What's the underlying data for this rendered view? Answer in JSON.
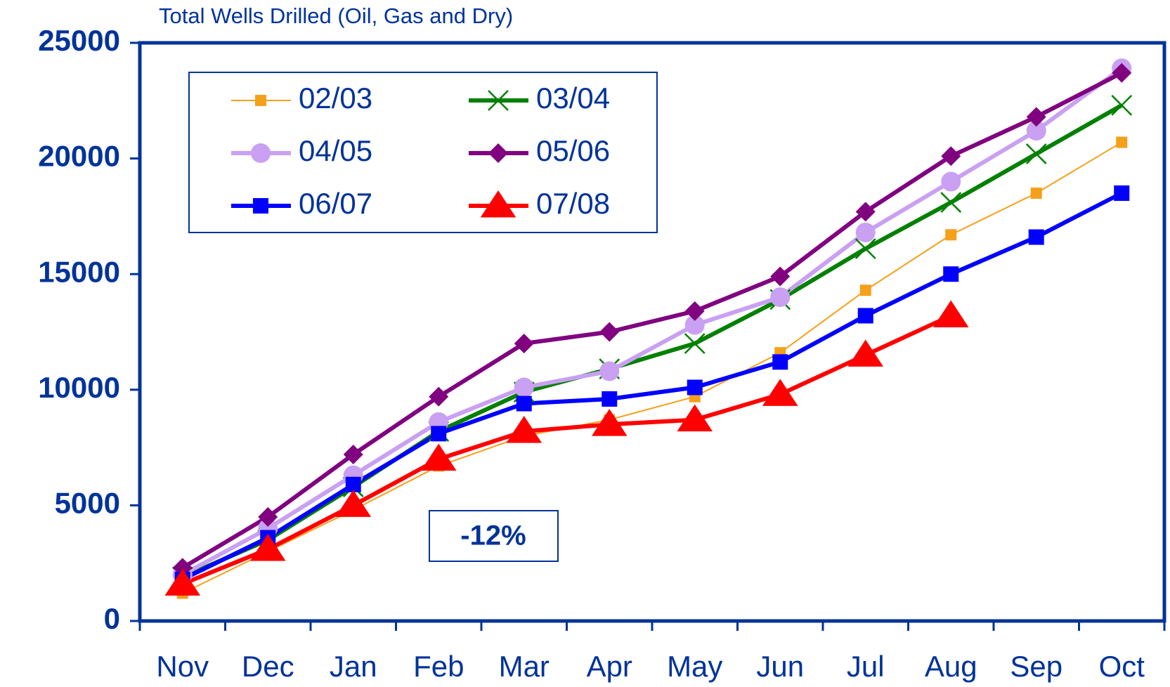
{
  "chart_data": {
    "type": "line",
    "title": "Total Wells Drilled (Oil, Gas and Dry)",
    "annotation": "-12%",
    "categories": [
      "Nov",
      "Dec",
      "Jan",
      "Feb",
      "Mar",
      "Apr",
      "May",
      "Jun",
      "Jul",
      "Aug",
      "Sep",
      "Oct"
    ],
    "ylim": [
      0,
      25000
    ],
    "yticks": [
      0,
      5000,
      10000,
      15000,
      20000,
      25000
    ],
    "legend": "upper left",
    "series": [
      {
        "name": "02/03",
        "color": "#f5a01a",
        "marker": "square",
        "width": 2,
        "values": [
          1200,
          3000,
          4800,
          6700,
          8000,
          8700,
          9700,
          11600,
          14300,
          16700,
          18500,
          20700
        ]
      },
      {
        "name": "03/04",
        "color": "#008000",
        "marker": "x",
        "width": 6,
        "values": [
          1900,
          3500,
          5800,
          8200,
          9900,
          10900,
          12000,
          13900,
          16100,
          18100,
          20200,
          22300
        ]
      },
      {
        "name": "04/05",
        "color": "#c9a0f2",
        "marker": "circle",
        "width": 6,
        "values": [
          2000,
          4000,
          6300,
          8600,
          10100,
          10800,
          12800,
          14000,
          16800,
          19000,
          21200,
          23900
        ]
      },
      {
        "name": "05/06",
        "color": "#800080",
        "marker": "diamond",
        "width": 6,
        "values": [
          2300,
          4500,
          7200,
          9700,
          12000,
          12500,
          13400,
          14900,
          17700,
          20100,
          21800,
          23700
        ]
      },
      {
        "name": "06/07",
        "color": "#0000ff",
        "marker": "bigsquare",
        "width": 6,
        "values": [
          1800,
          3600,
          5900,
          8100,
          9400,
          9600,
          10100,
          11200,
          13200,
          15000,
          16600,
          18500
        ]
      },
      {
        "name": "07/08",
        "color": "#ff0000",
        "marker": "triangle",
        "width": 6,
        "values": [
          1600,
          3100,
          5000,
          7000,
          8200,
          8500,
          8700,
          9800,
          11500,
          13200,
          null,
          null
        ]
      }
    ]
  }
}
